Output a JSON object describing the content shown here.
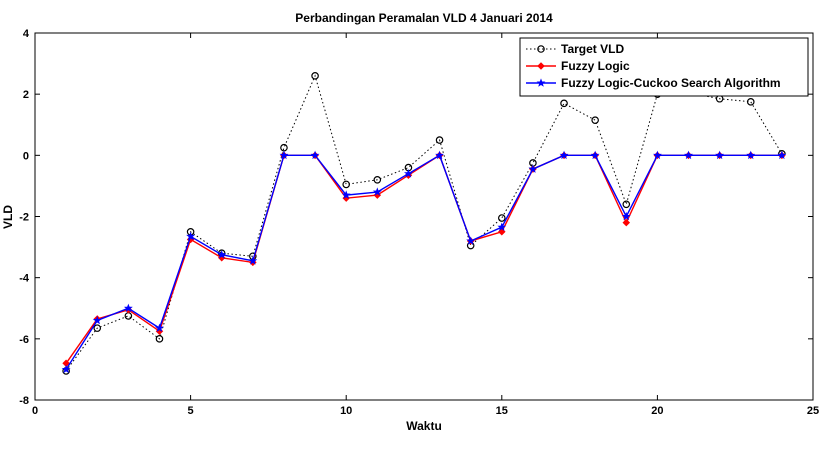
{
  "chart_data": {
    "type": "line",
    "title": "Perbandingan Peramalan VLD 4 Januari 2014",
    "xlabel": "Waktu",
    "ylabel": "VLD",
    "xlim": [
      0,
      25
    ],
    "ylim": [
      -8,
      4
    ],
    "xticks": [
      0,
      5,
      10,
      15,
      20,
      25
    ],
    "yticks": [
      -8,
      -6,
      -4,
      -2,
      0,
      2,
      4
    ],
    "grid": false,
    "legend_position": "top-right",
    "x": [
      1,
      2,
      3,
      4,
      5,
      6,
      7,
      8,
      9,
      10,
      11,
      12,
      13,
      14,
      15,
      16,
      17,
      18,
      19,
      20,
      21,
      22,
      23,
      24
    ],
    "series": [
      {
        "name": "Target VLD",
        "color": "#000000",
        "line_style": "dotted",
        "marker": "circle",
        "values": [
          -7.05,
          -5.65,
          -5.25,
          -6.0,
          -2.5,
          -3.2,
          -3.3,
          0.25,
          2.6,
          -0.95,
          -0.8,
          -0.4,
          0.5,
          -2.95,
          -2.05,
          -0.25,
          1.7,
          1.15,
          -1.6,
          2.0,
          2.05,
          1.85,
          1.75,
          0.05
        ]
      },
      {
        "name": "Fuzzy Logic",
        "color": "#ff0000",
        "line_style": "solid",
        "marker": "diamond",
        "values": [
          -6.8,
          -5.35,
          -5.05,
          -5.75,
          -2.75,
          -3.35,
          -3.5,
          0.0,
          0.0,
          -1.4,
          -1.3,
          -0.65,
          0.0,
          -2.8,
          -2.5,
          -0.45,
          0.0,
          0.0,
          -2.2,
          0.0,
          0.0,
          0.0,
          0.0,
          0.0
        ]
      },
      {
        "name": "Fuzzy Logic-Cuckoo Search Algorithm",
        "color": "#0000ff",
        "line_style": "solid",
        "marker": "star",
        "values": [
          -7.0,
          -5.4,
          -5.0,
          -5.65,
          -2.65,
          -3.25,
          -3.45,
          0.0,
          0.0,
          -1.3,
          -1.2,
          -0.6,
          0.0,
          -2.8,
          -2.35,
          -0.45,
          0.0,
          0.0,
          -2.0,
          0.0,
          0.0,
          0.0,
          0.0,
          0.0
        ]
      }
    ]
  }
}
